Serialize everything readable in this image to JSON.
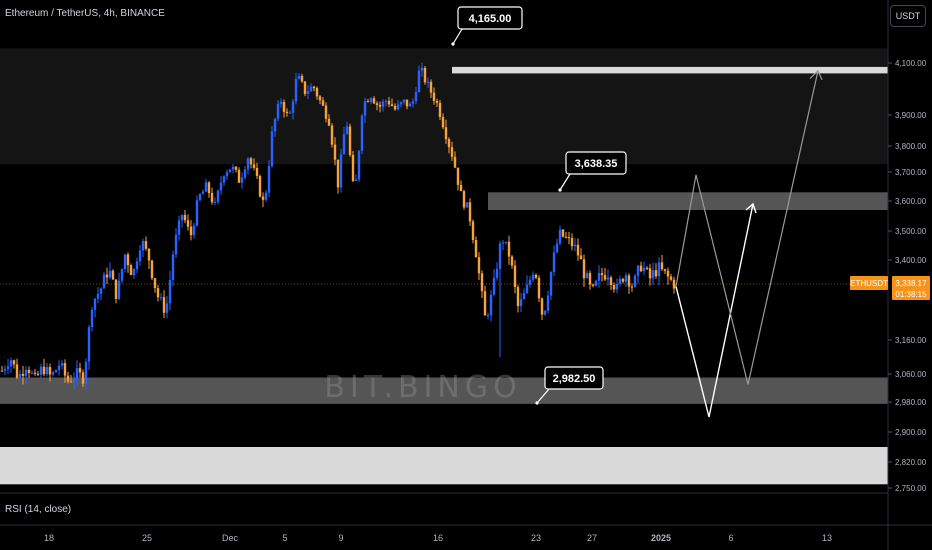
{
  "header": {
    "title": "Ethereum / TetherUS, 4h, BINANCE",
    "currency": "USDT"
  },
  "indicator": {
    "rsi_label": "RSI (14, close)"
  },
  "watermark": "BIT.BINGO",
  "price_tag": {
    "symbol": "ETHUSDT",
    "price": "3,338.17",
    "countdown": "01:38:15"
  },
  "colors": {
    "background": "#000000",
    "up": "#2962ff",
    "down": "#f7a23b",
    "zone_dark": "#141414",
    "zone_gray": "#555555",
    "zone_light": "#d9d9d9",
    "accent": "#f7931a"
  },
  "chart_data": {
    "type": "candlestick",
    "title": "Ethereum / TetherUS, 4h, BINANCE",
    "y_axis": {
      "ticks": [
        "4,100.00",
        "3,900.00",
        "3,800.00",
        "3,700.00",
        "3,600.00",
        "3,500.00",
        "3,400.00",
        "3,160.00",
        "3,060.00",
        "2,980.00",
        "2,900.00",
        "2,820.00",
        "2,750.00"
      ],
      "range": [
        2750,
        4160
      ]
    },
    "x_axis": {
      "ticks": [
        "18",
        "25",
        "Dec",
        "5",
        "9",
        "16",
        "23",
        "27",
        "2025",
        "6",
        "13"
      ]
    },
    "current_price": 3338.17,
    "annotations": [
      {
        "label": "4,165.00",
        "value": 4165.0
      },
      {
        "label": "3,638.35",
        "value": 3638.35
      },
      {
        "label": "2,982.50",
        "value": 2982.5
      }
    ],
    "zones": [
      {
        "name": "upper-range",
        "from": 3730,
        "to": 4140,
        "style": "dark"
      },
      {
        "name": "resistance-4070",
        "from": 4060,
        "to": 4085,
        "style": "light"
      },
      {
        "name": "resistance-3600",
        "from": 3570,
        "to": 3630,
        "style": "gray"
      },
      {
        "name": "support-3000",
        "from": 2975,
        "to": 3050,
        "style": "gray"
      },
      {
        "name": "demand-2800",
        "from": 2760,
        "to": 2860,
        "style": "light"
      }
    ],
    "projection_white": [
      3330,
      2940,
      3590
    ],
    "projection_gray": [
      3330,
      3690,
      3030,
      4070
    ],
    "price_path": [
      3070,
      3110,
      3050,
      3090,
      3040,
      3080,
      3050,
      3090,
      3040,
      3060,
      3050,
      3280,
      3320,
      3380,
      3300,
      3420,
      3360,
      3470,
      3400,
      3300,
      3250,
      3450,
      3560,
      3480,
      3610,
      3650,
      3580,
      3700,
      3720,
      3670,
      3760,
      3680,
      3580,
      3850,
      3960,
      3880,
      4050,
      3990,
      4010,
      3940,
      3880,
      3660,
      3900,
      3600,
      3940,
      3980,
      3930,
      3960,
      3920,
      3950,
      3930,
      4080,
      4010,
      3950,
      3860,
      3760,
      3620,
      3560,
      3400,
      3220,
      3330,
      3480,
      3410,
      3260,
      3320,
      3390,
      3230,
      3370,
      3490,
      3470,
      3440,
      3370,
      3310,
      3360,
      3370,
      3320,
      3370,
      3330,
      3390,
      3350,
      3380,
      3360,
      3338
    ]
  }
}
